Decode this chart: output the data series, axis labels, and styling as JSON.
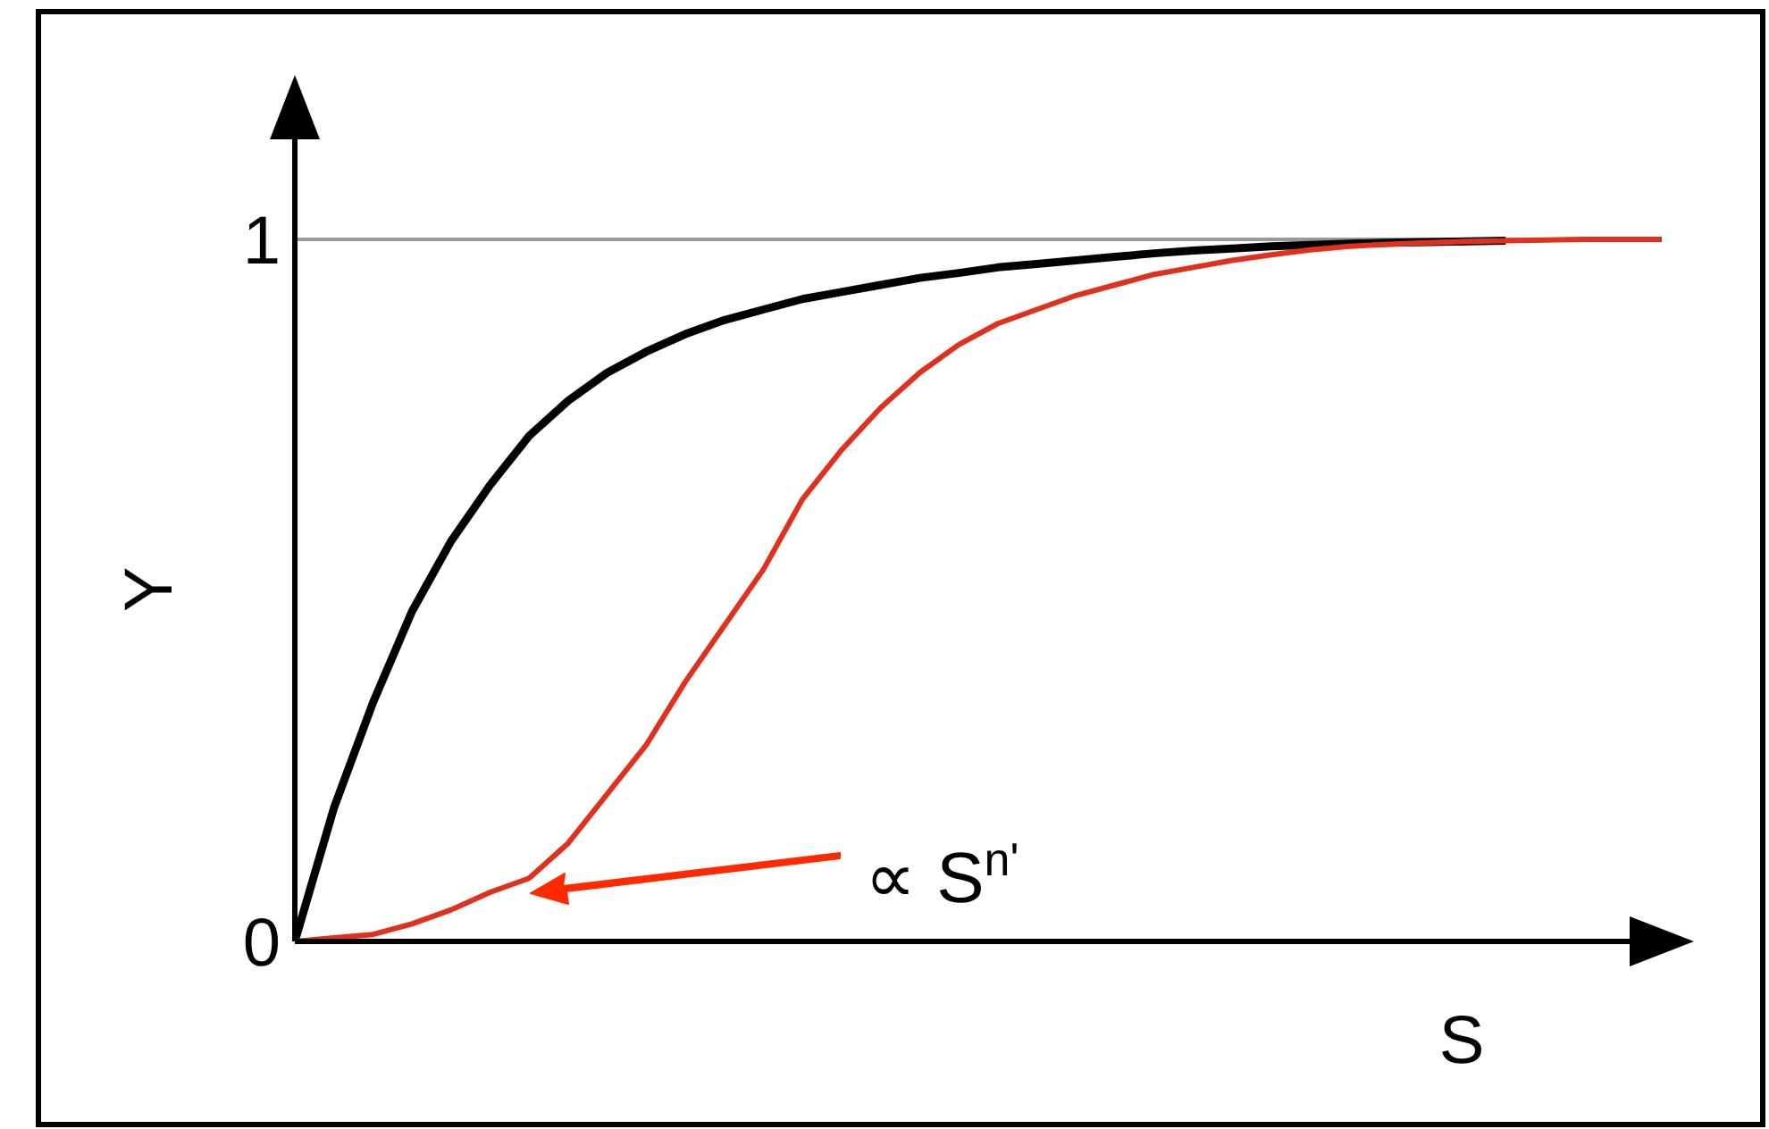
{
  "chart_data": {
    "type": "line",
    "xlabel": "S",
    "ylabel": "Y",
    "categories": [
      null,
      null,
      null,
      null,
      null,
      null,
      null,
      null,
      null,
      null,
      null,
      null,
      null,
      null,
      null,
      null,
      null,
      null,
      null,
      null,
      null,
      null,
      null,
      null,
      null,
      null,
      null,
      null,
      null,
      null,
      null,
      null,
      null,
      null,
      null,
      null
    ],
    "series": [
      {
        "color": "#000000",
        "values": [
          0,
          0.19,
          0.34,
          0.47,
          0.57,
          0.65,
          0.72,
          0.77,
          0.81,
          0.84,
          0.865,
          0.885,
          0.9,
          0.915,
          0.925,
          0.935,
          0.945,
          0.952,
          0.96,
          0.965,
          0.97,
          0.975,
          0.98,
          0.984,
          0.987,
          0.99,
          0.992,
          0.994,
          0.995,
          0.996,
          0.997,
          0.998,
          null,
          null,
          null,
          null
        ]
      },
      {
        "color": "#e0301e",
        "values": [
          0,
          0.005,
          0.01,
          0.025,
          0.045,
          0.07,
          0.09,
          0.14,
          0.21,
          0.28,
          0.37,
          0.45,
          0.53,
          0.63,
          0.7,
          0.76,
          0.81,
          0.85,
          0.88,
          0.9,
          0.92,
          0.935,
          0.95,
          0.96,
          0.97,
          0.978,
          0.985,
          0.99,
          0.993,
          0.995,
          0.997,
          0.998,
          0.999,
          1,
          1,
          1
        ]
      }
    ],
    "ylim": [
      0,
      1.15
    ],
    "yticks": [
      0,
      1
    ],
    "tick_labels": "y",
    "marker": "none",
    "line_style": "solid",
    "ref_lines": [
      {
        "axis": "y",
        "value": 1,
        "color": "#999999"
      }
    ],
    "annotations": [
      "∝ S$^{n'}$"
    ]
  }
}
